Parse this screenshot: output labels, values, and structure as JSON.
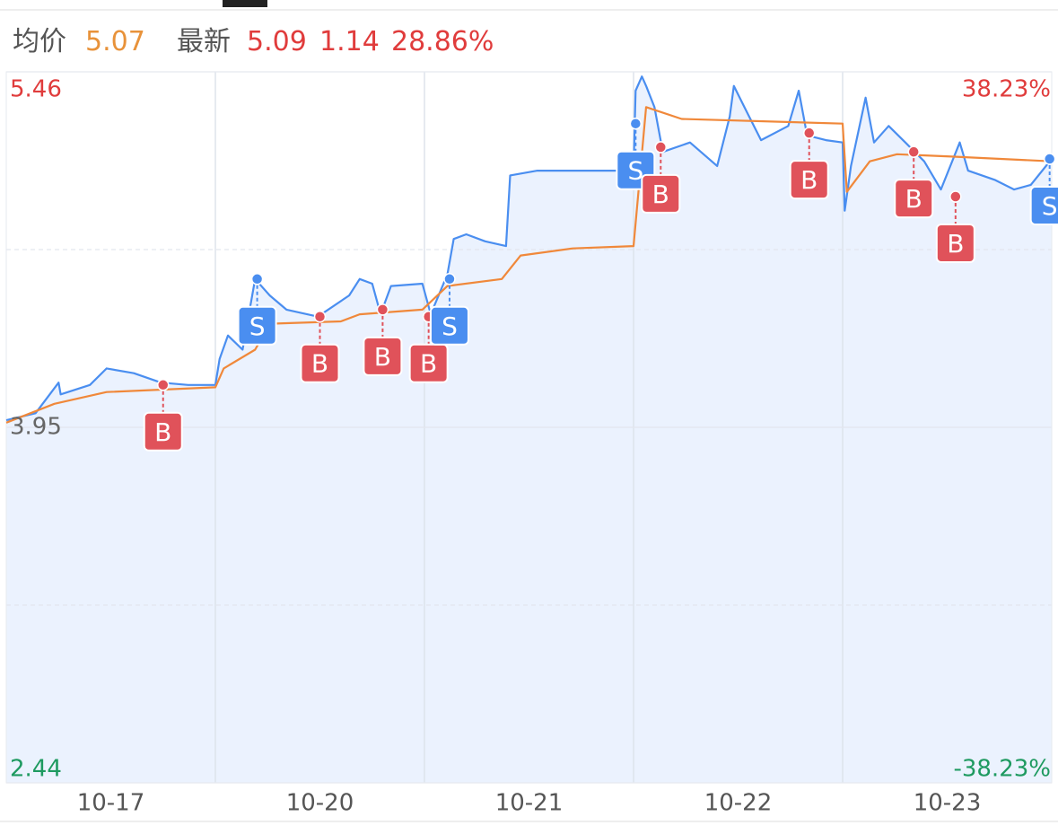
{
  "header": {
    "avg_label": "均价",
    "avg": "5.07",
    "latest_label": "最新",
    "latest": "5.09",
    "change": "1.14",
    "change_pct": "28.86%"
  },
  "chart_data": {
    "type": "line",
    "categories": [
      "10-17",
      "10-20",
      "10-21",
      "10-22",
      "10-23"
    ],
    "xlim": [
      0,
      5
    ],
    "ylim": [
      2.44,
      5.46
    ],
    "yticks": [
      5.46,
      {
        "value": 4.705,
        "label": null
      },
      3.95,
      {
        "value": 3.195,
        "label": null
      },
      2.44
    ],
    "y2lim": [
      -38.23,
      38.23
    ],
    "y2ticks": [
      {
        "value": 38.23,
        "label": "38.23%"
      },
      {
        "value": -38.23,
        "label": "-38.23%"
      }
    ],
    "grid": true,
    "series": [
      {
        "color": "#4a8ef0",
        "fill": "#ebf2fe",
        "x": [
          0,
          0.14,
          0.25,
          0.26,
          0.4,
          0.48,
          0.61,
          0.74,
          0.87,
          1.0,
          1.02,
          1.06,
          1.13,
          1.19,
          1.26,
          1.34,
          1.49,
          1.64,
          1.69,
          1.75,
          1.79,
          1.84,
          1.99,
          2.03,
          2.11,
          2.14,
          2.2,
          2.29,
          2.39,
          2.41,
          2.54,
          3.0,
          3.01,
          3.04,
          3.06,
          3.1,
          3.14,
          3.27,
          3.4,
          3.46,
          3.48,
          3.53,
          3.61,
          3.74,
          3.79,
          3.83,
          3.92,
          4.0,
          4.01,
          4.04,
          4.11,
          4.15,
          4.22,
          4.3,
          4.39,
          4.47,
          4.56,
          4.6,
          4.73,
          4.82,
          4.9,
          5.0
        ],
        "values": [
          3.98,
          4.01,
          4.14,
          4.09,
          4.13,
          4.2,
          4.18,
          4.14,
          4.13,
          4.13,
          4.24,
          4.34,
          4.28,
          4.58,
          4.51,
          4.45,
          4.42,
          4.51,
          4.58,
          4.56,
          4.43,
          4.55,
          4.56,
          4.43,
          4.6,
          4.75,
          4.77,
          4.74,
          4.72,
          5.02,
          5.04,
          5.04,
          5.38,
          5.44,
          5.4,
          5.31,
          5.12,
          5.16,
          5.06,
          5.27,
          5.4,
          5.31,
          5.17,
          5.23,
          5.38,
          5.19,
          5.17,
          5.16,
          4.87,
          5.06,
          5.35,
          5.16,
          5.23,
          5.16,
          5.08,
          4.96,
          5.16,
          5.04,
          5.0,
          4.96,
          4.98,
          5.09
        ]
      },
      {
        "color": "#f0883a",
        "x": [
          0,
          0.23,
          0.48,
          1.0,
          1.04,
          1.19,
          1.26,
          1.6,
          1.69,
          1.99,
          2.11,
          2.37,
          2.46,
          2.71,
          3.0,
          3.06,
          3.23,
          4.0,
          4.02,
          4.13,
          4.26,
          4.52,
          5.0
        ],
        "values": [
          3.97,
          4.05,
          4.1,
          4.12,
          4.2,
          4.28,
          4.39,
          4.4,
          4.43,
          4.45,
          4.55,
          4.58,
          4.68,
          4.71,
          4.72,
          5.31,
          5.26,
          5.24,
          4.95,
          5.08,
          5.11,
          5.1,
          5.08
        ]
      }
    ],
    "trades": [
      {
        "side": "B",
        "x": 0.75,
        "price": 4.13
      },
      {
        "side": "S",
        "x": 1.2,
        "price": 4.58
      },
      {
        "side": "B",
        "x": 1.5,
        "price": 4.42
      },
      {
        "side": "B",
        "x": 1.8,
        "price": 4.45
      },
      {
        "side": "B",
        "x": 2.02,
        "price": 4.42
      },
      {
        "side": "S",
        "x": 2.12,
        "price": 4.58
      },
      {
        "side": "S",
        "x": 3.01,
        "price": 5.24
      },
      {
        "side": "B",
        "x": 3.13,
        "price": 5.14
      },
      {
        "side": "B",
        "x": 3.84,
        "price": 5.2
      },
      {
        "side": "B",
        "x": 4.34,
        "price": 5.12
      },
      {
        "side": "B",
        "x": 4.54,
        "price": 4.93
      },
      {
        "side": "S",
        "x": 4.99,
        "price": 5.09
      }
    ],
    "side_colors": {
      "B": "#e0525a",
      "S": "#4a8ef0"
    }
  }
}
